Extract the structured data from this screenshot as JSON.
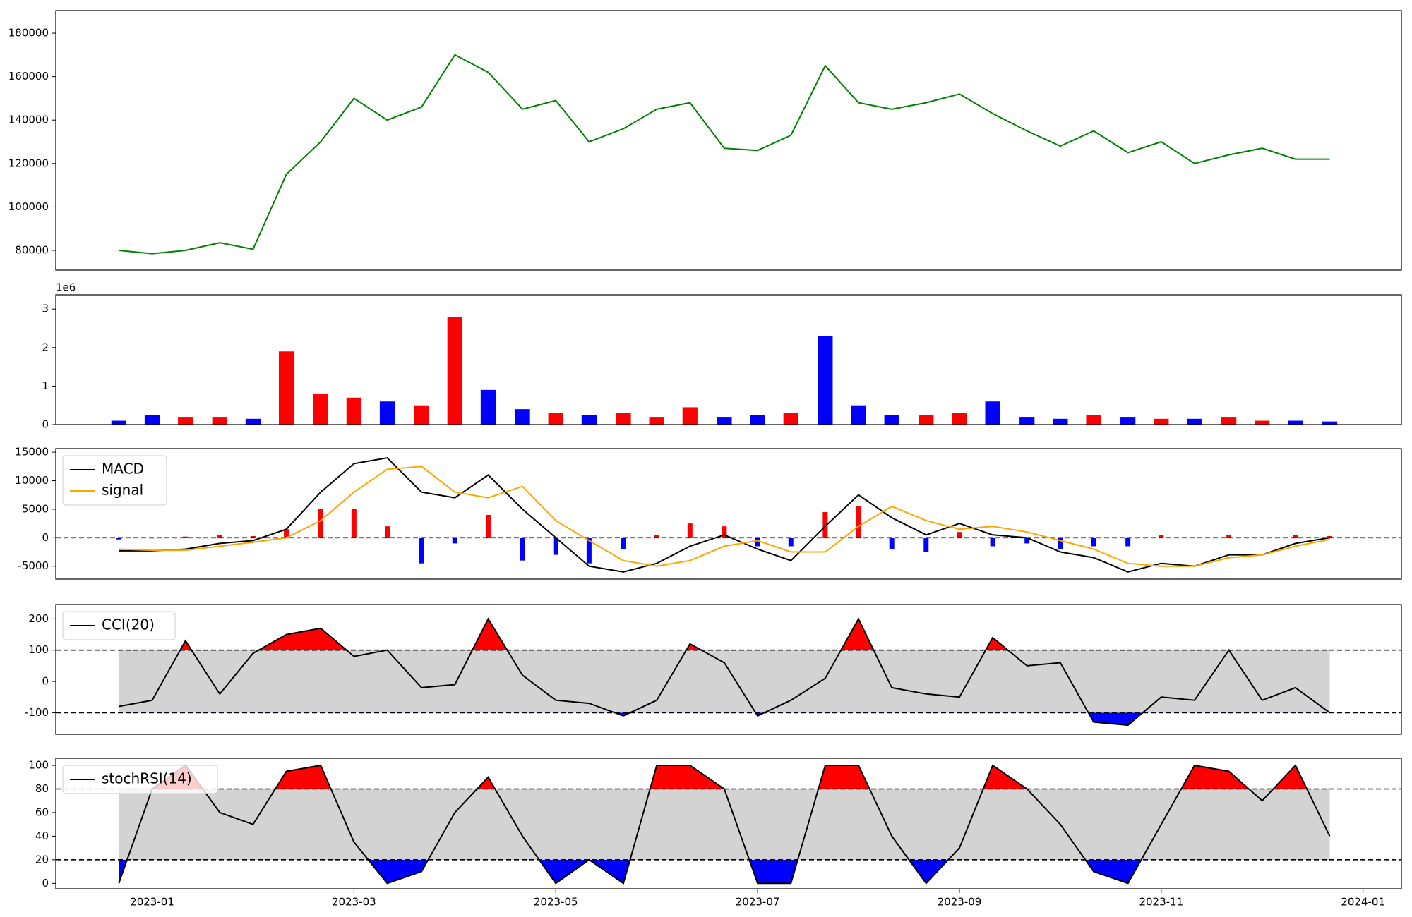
{
  "chart_data": [
    {
      "type": "line",
      "color": "#008000",
      "x": [
        -0.33,
        0,
        0.33,
        0.67,
        1,
        1.33,
        1.67,
        2,
        2.33,
        2.67,
        3,
        3.33,
        3.67,
        4,
        4.33,
        4.67,
        5,
        5.33,
        5.67,
        6,
        6.33,
        6.67,
        7,
        7.33,
        7.67,
        8,
        8.33,
        8.67,
        9,
        9.33,
        9.67,
        10,
        10.33,
        10.67,
        11,
        11.33,
        11.67
      ],
      "values": [
        80000,
        78500,
        80000,
        83500,
        80500,
        115000,
        130000,
        150000,
        140000,
        146000,
        170000,
        162000,
        145000,
        149000,
        130000,
        136000,
        145000,
        148000,
        127000,
        126000,
        133000,
        165000,
        148000,
        145000,
        148000,
        152000,
        143000,
        135000,
        128000,
        135000,
        125000,
        130000,
        120000,
        124000,
        127000,
        122000,
        122000
      ],
      "xlim": [
        -0.955,
        12.38
      ],
      "ylim": [
        70900,
        190400
      ],
      "yticks": [
        80000,
        100000,
        120000,
        140000,
        160000,
        180000
      ]
    },
    {
      "type": "bar",
      "offset_label": "1e6",
      "x": [
        -0.33,
        0,
        0.33,
        0.67,
        1,
        1.33,
        1.67,
        2,
        2.33,
        2.67,
        3,
        3.33,
        3.67,
        4,
        4.33,
        4.67,
        5,
        5.33,
        5.67,
        6,
        6.33,
        6.67,
        7,
        7.33,
        7.67,
        8,
        8.33,
        8.67,
        9,
        9.33,
        9.67,
        10,
        10.33,
        10.67,
        11,
        11.33,
        11.67
      ],
      "values": [
        100000,
        250000,
        200000,
        200000,
        150000,
        1900000,
        800000,
        700000,
        600000,
        500000,
        2800000,
        900000,
        400000,
        300000,
        250000,
        300000,
        200000,
        450000,
        200000,
        250000,
        300000,
        2300000,
        500000,
        250000,
        250000,
        300000,
        600000,
        200000,
        150000,
        250000,
        200000,
        150000,
        150000,
        200000,
        100000,
        100000,
        80000
      ],
      "colors": [
        "blue",
        "blue",
        "red",
        "red",
        "blue",
        "red",
        "red",
        "red",
        "blue",
        "red",
        "red",
        "blue",
        "blue",
        "red",
        "blue",
        "red",
        "red",
        "red",
        "blue",
        "blue",
        "red",
        "blue",
        "blue",
        "blue",
        "red",
        "red",
        "blue",
        "blue",
        "blue",
        "red",
        "blue",
        "red",
        "blue",
        "red",
        "red",
        "blue",
        "blue"
      ],
      "xlim": [
        -0.955,
        12.38
      ],
      "ylim": [
        0,
        3370000
      ],
      "yticks": [
        0,
        {
          "value": 1000000,
          "label": "1"
        },
        {
          "value": 2000000,
          "label": "2"
        },
        {
          "value": 3000000,
          "label": "3"
        }
      ]
    },
    {
      "type": "macd",
      "legend": "upper left",
      "x": [
        -0.33,
        0,
        0.33,
        0.67,
        1,
        1.33,
        1.67,
        2,
        2.33,
        2.67,
        3,
        3.33,
        3.67,
        4,
        4.33,
        4.67,
        5,
        5.33,
        5.67,
        6,
        6.33,
        6.67,
        7,
        7.33,
        7.67,
        8,
        8.33,
        8.67,
        9,
        9.33,
        9.67,
        10,
        10.33,
        10.67,
        11,
        11.33,
        11.67
      ],
      "series": [
        {
          "name": "MACD",
          "color": "#000000",
          "values": [
            -2300,
            -2300,
            -2000,
            -1000,
            -500,
            1500,
            8000,
            13000,
            14000,
            8000,
            7000,
            11000,
            5000,
            0,
            -5000,
            -6000,
            -4500,
            -1500,
            500,
            -2000,
            -4000,
            2000,
            7500,
            3500,
            500,
            2500,
            500,
            0,
            -2500,
            -3500,
            -6000,
            -4500,
            -5000,
            -3000,
            -3000,
            -1000,
            0
          ]
        },
        {
          "name": "signal",
          "color": "#ffa500",
          "values": [
            -2000,
            -2200,
            -2200,
            -1500,
            -800,
            0,
            3000,
            8000,
            12000,
            12500,
            8000,
            7000,
            9000,
            3000,
            -500,
            -4000,
            -5000,
            -4000,
            -1500,
            -500,
            -2500,
            -2500,
            2000,
            5500,
            3000,
            1500,
            2000,
            1000,
            -500,
            -2000,
            -4500,
            -5000,
            -5000,
            -3500,
            -3000,
            -1500,
            -300
          ]
        }
      ],
      "hist": [
        -300,
        -100,
        200,
        500,
        300,
        1500,
        5000,
        5000,
        2000,
        -4500,
        -1000,
        4000,
        -4000,
        -3000,
        -4500,
        -2000,
        500,
        2500,
        2000,
        -1500,
        -1500,
        4500,
        5500,
        -2000,
        -2500,
        1000,
        -1500,
        -1000,
        -2000,
        -1500,
        -1500,
        500,
        0,
        500,
        0,
        500,
        300
      ],
      "hist_colors": [
        "#ff0000",
        "#0000ff"
      ],
      "hlines": [
        0
      ],
      "xlim": [
        -0.955,
        12.38
      ],
      "ylim": [
        -7260,
        15630
      ],
      "yticks": [
        -5000,
        0,
        5000,
        10000,
        15000
      ]
    },
    {
      "type": "oscillator",
      "legend": "upper left",
      "x": [
        -0.33,
        0,
        0.33,
        0.67,
        1,
        1.33,
        1.67,
        2,
        2.33,
        2.67,
        3,
        3.33,
        3.67,
        4,
        4.33,
        4.67,
        5,
        5.33,
        5.67,
        6,
        6.33,
        6.67,
        7,
        7.33,
        7.67,
        8,
        8.33,
        8.67,
        9,
        9.33,
        9.67,
        10,
        10.33,
        10.67,
        11,
        11.33,
        11.67
      ],
      "series": [
        {
          "name": "CCI(20)",
          "color": "#000000",
          "values": [
            -80,
            -60,
            130,
            -40,
            90,
            150,
            170,
            80,
            100,
            -20,
            -10,
            200,
            20,
            -60,
            -70,
            -110,
            -60,
            120,
            60,
            -110,
            -60,
            10,
            200,
            -20,
            -40,
            -50,
            140,
            50,
            60,
            -130,
            -140,
            -50,
            -60,
            100,
            -60,
            -20,
            -100
          ]
        }
      ],
      "hlines": [
        100,
        -100
      ],
      "fill_colors": {
        "above": "#ff0000",
        "below": "#0000ff",
        "band": "#d3d3d3"
      },
      "xlim": [
        -0.955,
        12.38
      ],
      "ylim": [
        -169,
        246
      ],
      "yticks": [
        -100,
        0,
        100,
        200
      ]
    },
    {
      "type": "oscillator",
      "legend": "upper left",
      "x": [
        -0.33,
        0,
        0.33,
        0.67,
        1,
        1.33,
        1.67,
        2,
        2.33,
        2.67,
        3,
        3.33,
        3.67,
        4,
        4.33,
        4.67,
        5,
        5.33,
        5.67,
        6,
        6.33,
        6.67,
        7,
        7.33,
        7.67,
        8,
        8.33,
        8.67,
        9,
        9.33,
        9.67,
        10,
        10.33,
        10.67,
        11,
        11.33,
        11.67
      ],
      "series": [
        {
          "name": "stochRSI(14)",
          "color": "#000000",
          "values": [
            0,
            80,
            100,
            60,
            50,
            95,
            100,
            35,
            0,
            10,
            60,
            90,
            40,
            0,
            20,
            0,
            100,
            100,
            80,
            0,
            0,
            100,
            100,
            40,
            0,
            30,
            100,
            80,
            50,
            10,
            0,
            50,
            100,
            95,
            70,
            100,
            40
          ]
        }
      ],
      "hlines": [
        80,
        20
      ],
      "fill_colors": {
        "above": "#ff0000",
        "below": "#0000ff",
        "band": "#d3d3d3"
      },
      "xlim": [
        -0.955,
        12.38
      ],
      "ylim": [
        -4.6,
        106
      ],
      "yticks": [
        0,
        20,
        40,
        60,
        80,
        100
      ],
      "xticks": [
        {
          "value": 0,
          "label": "2023-01"
        },
        {
          "value": 2,
          "label": "2023-03"
        },
        {
          "value": 4,
          "label": "2023-05"
        },
        {
          "value": 6,
          "label": "2023-07"
        },
        {
          "value": 8,
          "label": "2023-09"
        },
        {
          "value": 10,
          "label": "2023-11"
        },
        {
          "value": 12,
          "label": "2024-01"
        }
      ]
    }
  ]
}
